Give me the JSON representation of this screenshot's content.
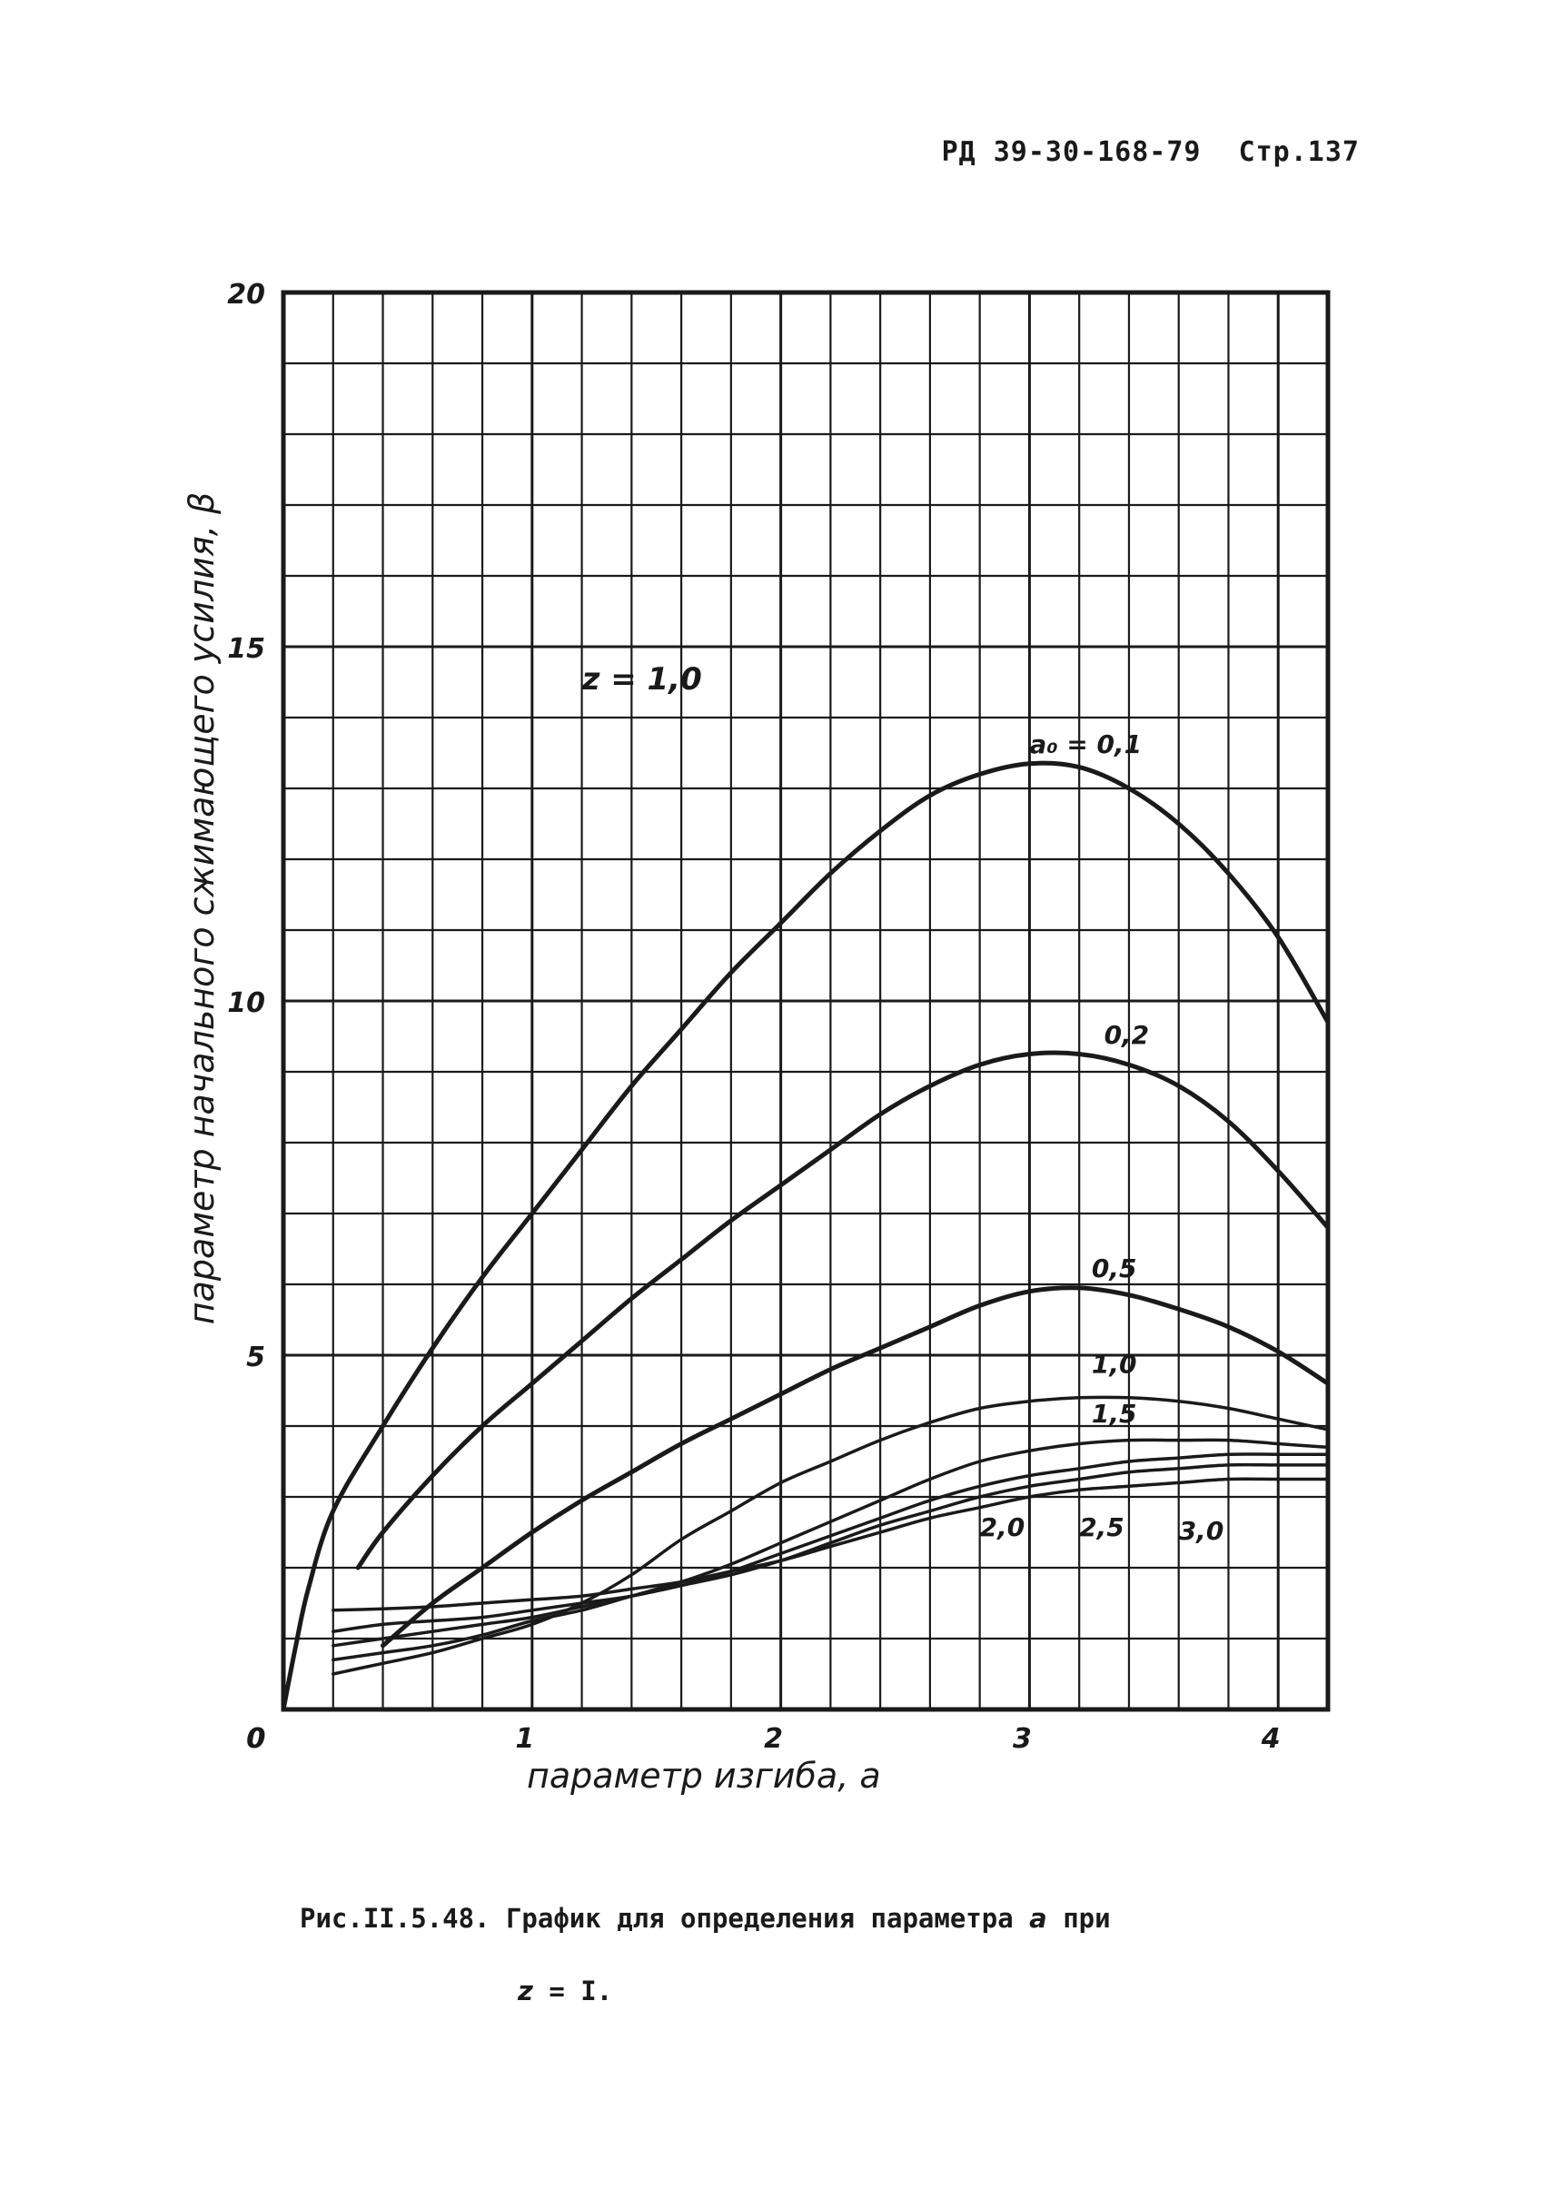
{
  "header": {
    "doc": "РД 39-30-168-79",
    "page": "Стр.137"
  },
  "caption": {
    "line1_prefix": "Рис.II.5.48. График для определения параметра",
    "line1_symbol": "a",
    "line1_suffix": "при",
    "line2_symbol": "z",
    "line2_suffix": "= I."
  },
  "chart_data": {
    "type": "line",
    "annotation": "z = 1,0",
    "xlabel": "параметр изгиба, a",
    "ylabel": "параметр начального сжимающего усилия, β",
    "xlim": [
      0,
      4.2
    ],
    "ylim": [
      0,
      20
    ],
    "xticks": [
      "0",
      "1",
      "2",
      "3",
      "4"
    ],
    "yticks": [
      "0",
      "5",
      "10",
      "15",
      "20"
    ],
    "grid": true,
    "series": [
      {
        "name": "a₀ = 0,1",
        "x": [
          0,
          0.05,
          0.1,
          0.2,
          0.4,
          0.6,
          0.8,
          1.0,
          1.2,
          1.4,
          1.6,
          1.8,
          2.0,
          2.2,
          2.4,
          2.6,
          2.8,
          3.0,
          3.2,
          3.4,
          3.6,
          3.8,
          4.0,
          4.2
        ],
        "y": [
          0,
          0.9,
          1.7,
          2.8,
          4.0,
          5.1,
          6.1,
          7.0,
          7.9,
          8.8,
          9.6,
          10.4,
          11.1,
          11.8,
          12.4,
          12.9,
          13.2,
          13.35,
          13.3,
          13.0,
          12.5,
          11.8,
          10.9,
          9.7
        ]
      },
      {
        "name": "0,2",
        "x": [
          0.3,
          0.4,
          0.6,
          0.8,
          1.0,
          1.2,
          1.4,
          1.6,
          1.8,
          2.0,
          2.2,
          2.4,
          2.6,
          2.8,
          3.0,
          3.2,
          3.4,
          3.6,
          3.8,
          4.0,
          4.2
        ],
        "y": [
          2.0,
          2.5,
          3.3,
          4.0,
          4.6,
          5.2,
          5.8,
          6.35,
          6.9,
          7.4,
          7.9,
          8.4,
          8.8,
          9.1,
          9.25,
          9.25,
          9.1,
          8.8,
          8.3,
          7.6,
          6.8
        ]
      },
      {
        "name": "0,5",
        "x": [
          0.4,
          0.6,
          0.8,
          1.0,
          1.2,
          1.4,
          1.6,
          1.8,
          2.0,
          2.2,
          2.4,
          2.6,
          2.8,
          3.0,
          3.2,
          3.4,
          3.6,
          3.8,
          4.0,
          4.2
        ],
        "y": [
          0.9,
          1.5,
          2.0,
          2.5,
          2.95,
          3.35,
          3.75,
          4.1,
          4.45,
          4.8,
          5.1,
          5.4,
          5.7,
          5.9,
          5.95,
          5.85,
          5.65,
          5.4,
          5.05,
          4.6
        ]
      },
      {
        "name": "1,0",
        "x": [
          0.2,
          0.4,
          0.6,
          0.8,
          1.0,
          1.2,
          1.4,
          1.6,
          1.8,
          2.0,
          2.2,
          2.4,
          2.6,
          2.8,
          3.0,
          3.2,
          3.4,
          3.6,
          3.8,
          4.0,
          4.2
        ],
        "y": [
          0.5,
          0.65,
          0.8,
          1.0,
          1.2,
          1.5,
          1.9,
          2.4,
          2.8,
          3.2,
          3.5,
          3.8,
          4.05,
          4.25,
          4.35,
          4.4,
          4.4,
          4.35,
          4.25,
          4.1,
          3.95
        ]
      },
      {
        "name": "1,5",
        "x": [
          0.2,
          0.4,
          0.6,
          0.8,
          1.0,
          1.2,
          1.4,
          1.6,
          1.8,
          2.0,
          2.2,
          2.4,
          2.6,
          2.8,
          3.0,
          3.2,
          3.4,
          3.6,
          3.8,
          4.0,
          4.2
        ],
        "y": [
          0.7,
          0.8,
          0.9,
          1.05,
          1.25,
          1.4,
          1.6,
          1.8,
          2.05,
          2.35,
          2.65,
          2.95,
          3.25,
          3.5,
          3.65,
          3.75,
          3.8,
          3.8,
          3.8,
          3.75,
          3.7
        ]
      },
      {
        "name": "2,0",
        "x": [
          0.2,
          0.4,
          0.6,
          0.8,
          1.0,
          1.2,
          1.4,
          1.6,
          1.8,
          2.0,
          2.2,
          2.4,
          2.6,
          2.8,
          3.0,
          3.2,
          3.4,
          3.6,
          3.8,
          4.0,
          4.2
        ],
        "y": [
          0.9,
          1.0,
          1.1,
          1.2,
          1.3,
          1.45,
          1.6,
          1.75,
          1.95,
          2.2,
          2.45,
          2.7,
          2.95,
          3.15,
          3.3,
          3.4,
          3.5,
          3.55,
          3.6,
          3.6,
          3.6
        ]
      },
      {
        "name": "2,5",
        "x": [
          0.2,
          0.4,
          0.6,
          0.8,
          1.0,
          1.2,
          1.4,
          1.6,
          1.8,
          2.0,
          2.2,
          2.4,
          2.6,
          2.8,
          3.0,
          3.2,
          3.4,
          3.6,
          3.8,
          4.0,
          4.2
        ],
        "y": [
          1.1,
          1.2,
          1.25,
          1.3,
          1.4,
          1.5,
          1.6,
          1.75,
          1.9,
          2.1,
          2.35,
          2.6,
          2.8,
          3.0,
          3.15,
          3.25,
          3.35,
          3.4,
          3.45,
          3.45,
          3.45
        ]
      },
      {
        "name": "3,0",
        "x": [
          0.2,
          0.4,
          0.6,
          0.8,
          1.0,
          1.2,
          1.4,
          1.6,
          1.8,
          2.0,
          2.2,
          2.4,
          2.6,
          2.8,
          3.0,
          3.2,
          3.4,
          3.6,
          3.8,
          4.0,
          4.2
        ],
        "y": [
          1.4,
          1.42,
          1.45,
          1.5,
          1.55,
          1.6,
          1.7,
          1.8,
          1.95,
          2.1,
          2.3,
          2.5,
          2.7,
          2.85,
          3.0,
          3.1,
          3.15,
          3.2,
          3.25,
          3.25,
          3.25
        ]
      }
    ]
  }
}
